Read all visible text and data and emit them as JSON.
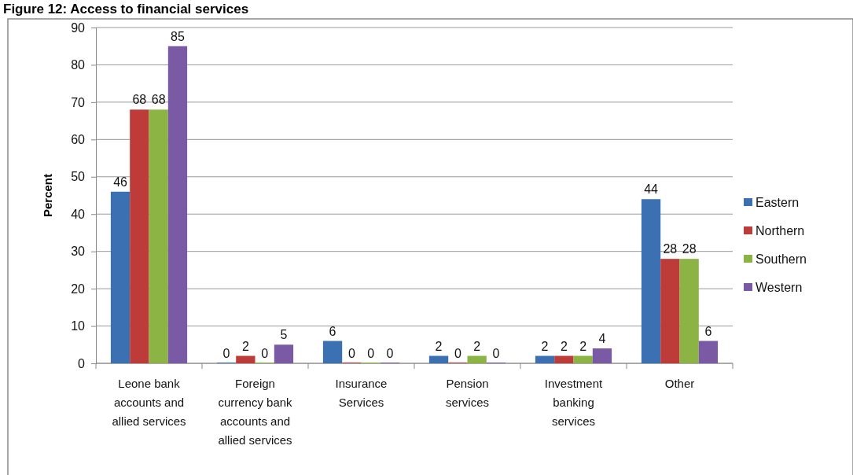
{
  "chart_data": {
    "type": "bar",
    "title": "Figure 12: Access to financial services",
    "ylabel": "Percent",
    "categories": [
      "Leone bank accounts and allied services",
      "Foreign currency bank accounts and allied services",
      "Insurance Services",
      "Pension services",
      "Investment banking services",
      "Other"
    ],
    "series": [
      {
        "name": "Eastern",
        "color": "#3b70b3",
        "values": [
          46,
          0,
          6,
          2,
          2,
          44
        ]
      },
      {
        "name": "Northern",
        "color": "#bd3b38",
        "values": [
          68,
          2,
          0,
          0,
          2,
          28
        ]
      },
      {
        "name": "Southern",
        "color": "#8cb444",
        "values": [
          68,
          0,
          0,
          2,
          2,
          28
        ]
      },
      {
        "name": "Western",
        "color": "#7a5aa5",
        "values": [
          85,
          5,
          0,
          0,
          4,
          6
        ]
      }
    ],
    "ylim": [
      0,
      90
    ],
    "yticks": [
      0,
      10,
      20,
      30,
      40,
      50,
      60,
      70,
      80,
      90
    ],
    "grid": "y",
    "legend": "right",
    "data_labels": true
  }
}
